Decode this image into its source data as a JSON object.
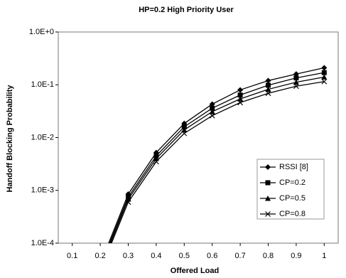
{
  "chart_data": {
    "type": "line",
    "title": "HP=0.2 High Priority User",
    "x_label": "Offered Load",
    "y_label": "Handoff Blocking Probability",
    "x": [
      0.2,
      0.3,
      0.4,
      0.5,
      0.6,
      0.7,
      0.8,
      0.9,
      1
    ],
    "series": [
      {
        "name": "RSSI [8]",
        "color": "#000000",
        "marker": "diamond",
        "values": [
          4e-05,
          0.00085,
          0.0052,
          0.0185,
          0.043,
          0.08,
          0.12,
          0.16,
          0.21
        ]
      },
      {
        "name": "CP=0.2",
        "color": "#000000",
        "marker": "square",
        "values": [
          3.6e-05,
          0.00075,
          0.0045,
          0.016,
          0.036,
          0.064,
          0.098,
          0.135,
          0.17
        ]
      },
      {
        "name": "CP=0.5",
        "color": "#000000",
        "marker": "triangle",
        "values": [
          3.3e-05,
          0.00068,
          0.004,
          0.014,
          0.031,
          0.054,
          0.082,
          0.112,
          0.14
        ]
      },
      {
        "name": "CP=0.8",
        "color": "#000000",
        "marker": "cross",
        "values": [
          3e-05,
          0.0006,
          0.0035,
          0.012,
          0.026,
          0.046,
          0.069,
          0.094,
          0.115
        ]
      }
    ],
    "xlim": [
      0.05,
      1.05
    ],
    "xticks": [
      0.1,
      0.2,
      0.3,
      0.4,
      0.5,
      0.6,
      0.7,
      0.8,
      0.9,
      1
    ],
    "ylim": [
      0.0001,
      1
    ],
    "log_y": true,
    "yticks": [
      {
        "value": 0.0001,
        "label": "1.0E-4"
      },
      {
        "value": 0.001,
        "label": "1.0E-3"
      },
      {
        "value": 0.01,
        "label": "1.0E-2"
      },
      {
        "value": 0.1,
        "label": "1.0E-1"
      },
      {
        "value": 1,
        "label": "1.0E+0"
      }
    ],
    "legend": "right"
  }
}
